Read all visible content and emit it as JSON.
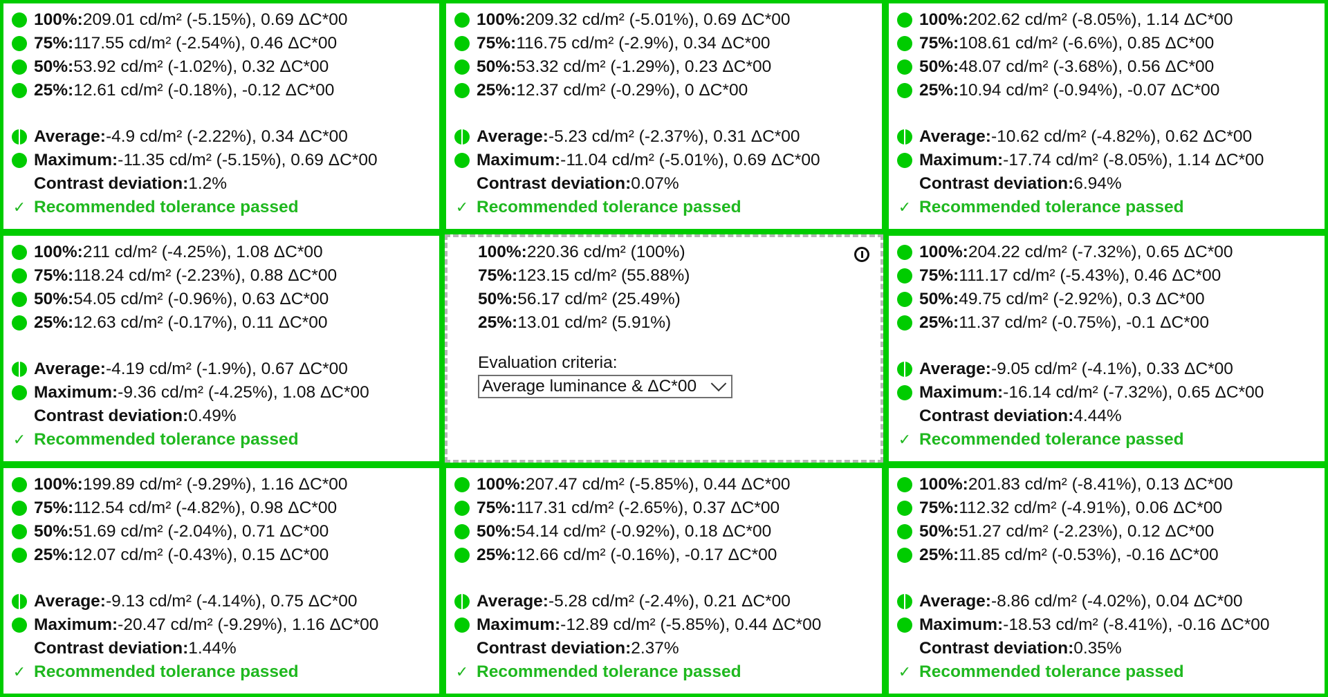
{
  "labels": {
    "p100": "100%:",
    "p75": "75%:",
    "p50": "50%:",
    "p25": "25%:",
    "average": "Average:",
    "maximum": "Maximum:",
    "contrast": "Contrast deviation:",
    "pass_check": "✓",
    "pass_text": "Recommended tolerance passed"
  },
  "colors": {
    "pass": "#00cc00",
    "border": "#00cc00",
    "reference_border": "#b5b5b5"
  },
  "cells": [
    {
      "p100": " 209.01 cd/m² (-5.15%), 0.69 ΔC*00",
      "p75": " 117.55 cd/m² (-2.54%), 0.46 ΔC*00",
      "p50": " 53.92 cd/m² (-1.02%), 0.32 ΔC*00",
      "p25": " 12.61 cd/m² (-0.18%), -0.12 ΔC*00",
      "average": " -4.9 cd/m² (-2.22%), 0.34 ΔC*00",
      "maximum": " -11.35 cd/m² (-5.15%), 0.69 ΔC*00",
      "contrast": " 1.2%"
    },
    {
      "p100": " 209.32 cd/m² (-5.01%), 0.69 ΔC*00",
      "p75": " 116.75 cd/m² (-2.9%), 0.34 ΔC*00",
      "p50": " 53.32 cd/m² (-1.29%), 0.23 ΔC*00",
      "p25": " 12.37 cd/m² (-0.29%), 0 ΔC*00",
      "average": " -5.23 cd/m² (-2.37%), 0.31 ΔC*00",
      "maximum": " -11.04 cd/m² (-5.01%), 0.69 ΔC*00",
      "contrast": " 0.07%"
    },
    {
      "p100": " 202.62 cd/m² (-8.05%), 1.14 ΔC*00",
      "p75": " 108.61 cd/m² (-6.6%), 0.85 ΔC*00",
      "p50": " 48.07 cd/m² (-3.68%), 0.56 ΔC*00",
      "p25": " 10.94 cd/m² (-0.94%), -0.07 ΔC*00",
      "average": " -10.62 cd/m² (-4.82%), 0.62 ΔC*00",
      "maximum": " -17.74 cd/m² (-8.05%), 1.14 ΔC*00",
      "contrast": " 6.94%"
    },
    {
      "p100": " 211 cd/m² (-4.25%), 1.08 ΔC*00",
      "p75": " 118.24 cd/m² (-2.23%), 0.88 ΔC*00",
      "p50": " 54.05 cd/m² (-0.96%), 0.63 ΔC*00",
      "p25": " 12.63 cd/m² (-0.17%), 0.11 ΔC*00",
      "average": " -4.19 cd/m² (-1.9%), 0.67 ΔC*00",
      "maximum": " -9.36 cd/m² (-4.25%), 1.08 ΔC*00",
      "contrast": " 0.49%"
    },
    {
      "p100": " 204.22 cd/m² (-7.32%), 0.65 ΔC*00",
      "p75": " 111.17 cd/m² (-5.43%), 0.46 ΔC*00",
      "p50": " 49.75 cd/m² (-2.92%), 0.3 ΔC*00",
      "p25": " 11.37 cd/m² (-0.75%), -0.1 ΔC*00",
      "average": " -9.05 cd/m² (-4.1%), 0.33 ΔC*00",
      "maximum": " -16.14 cd/m² (-7.32%), 0.65 ΔC*00",
      "contrast": " 4.44%"
    },
    {
      "p100": " 199.89 cd/m² (-9.29%), 1.16 ΔC*00",
      "p75": " 112.54 cd/m² (-4.82%), 0.98 ΔC*00",
      "p50": " 51.69 cd/m² (-2.04%), 0.71 ΔC*00",
      "p25": " 12.07 cd/m² (-0.43%), 0.15 ΔC*00",
      "average": " -9.13 cd/m² (-4.14%), 0.75 ΔC*00",
      "maximum": " -20.47 cd/m² (-9.29%), 1.16 ΔC*00",
      "contrast": " 1.44%"
    },
    {
      "p100": " 207.47 cd/m² (-5.85%), 0.44 ΔC*00",
      "p75": " 117.31 cd/m² (-2.65%), 0.37 ΔC*00",
      "p50": " 54.14 cd/m² (-0.92%), 0.18 ΔC*00",
      "p25": " 12.66 cd/m² (-0.16%), -0.17 ΔC*00",
      "average": " -5.28 cd/m² (-2.4%), 0.21 ΔC*00",
      "maximum": " -12.89 cd/m² (-5.85%), 0.44 ΔC*00",
      "contrast": " 2.37%"
    },
    {
      "p100": " 201.83 cd/m² (-8.41%), 0.13 ΔC*00",
      "p75": " 112.32 cd/m² (-4.91%), 0.06 ΔC*00",
      "p50": " 51.27 cd/m² (-2.23%), 0.12 ΔC*00",
      "p25": " 11.85 cd/m² (-0.53%), -0.16 ΔC*00",
      "average": " -8.86 cd/m² (-4.02%), 0.04 ΔC*00",
      "maximum": " -18.53 cd/m² (-8.41%), -0.16 ΔC*00",
      "contrast": " 0.35%"
    }
  ],
  "reference": {
    "p100": " 220.36 cd/m² (100%)",
    "p75": " 123.15 cd/m² (55.88%)",
    "p50": " 56.17 cd/m² (25.49%)",
    "p25": " 13.01 cd/m² (5.91%)",
    "criteria_label": "Evaluation criteria:",
    "criteria_value": "Average luminance & ΔC*00",
    "info_icon": "info-icon"
  }
}
